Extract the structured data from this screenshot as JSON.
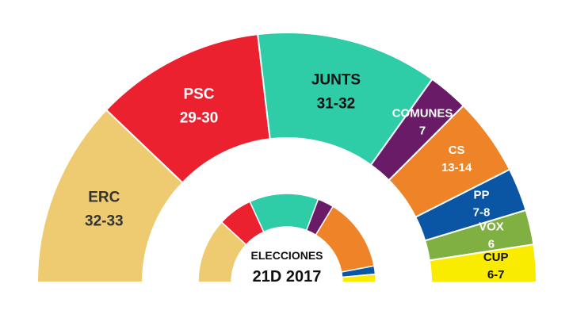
{
  "chart_data": [
    {
      "type": "pie",
      "variant": "semicircle-donut",
      "title": "",
      "categories": [
        "ERC",
        "PSC",
        "JUNTS",
        "COMUNES",
        "CS",
        "PP",
        "VOX",
        "CUP"
      ],
      "labels": [
        "32-33",
        "29-30",
        "31-32",
        "7",
        "13-14",
        "7-8",
        "6",
        "6-7"
      ],
      "values": [
        32.5,
        29.5,
        31.5,
        7,
        13.5,
        7.5,
        6,
        6.5
      ],
      "colors": [
        "#EECB70",
        "#EC2130",
        "#2ECCA7",
        "#6A1B68",
        "#EE8427",
        "#0A56A5",
        "#80B041",
        "#F9EC00"
      ]
    },
    {
      "type": "pie",
      "variant": "semicircle-donut",
      "title": "ELECCIONES",
      "subtitle": "21D 2017",
      "categories": [
        "ERC",
        "PSC",
        "JUNTS",
        "COMUNES",
        "CS",
        "PP",
        "CUP"
      ],
      "values": [
        32,
        17,
        34,
        8,
        36,
        4,
        4
      ],
      "colors": [
        "#EECB70",
        "#EC2130",
        "#2ECCA7",
        "#6A1B68",
        "#EE8427",
        "#0A56A5",
        "#F9EC00"
      ]
    }
  ],
  "outer_label_colors": [
    "#333333",
    "#ffffff",
    "#111111",
    "#ffffff",
    "#ffffff",
    "#ffffff",
    "#ffffff",
    "#111111"
  ]
}
